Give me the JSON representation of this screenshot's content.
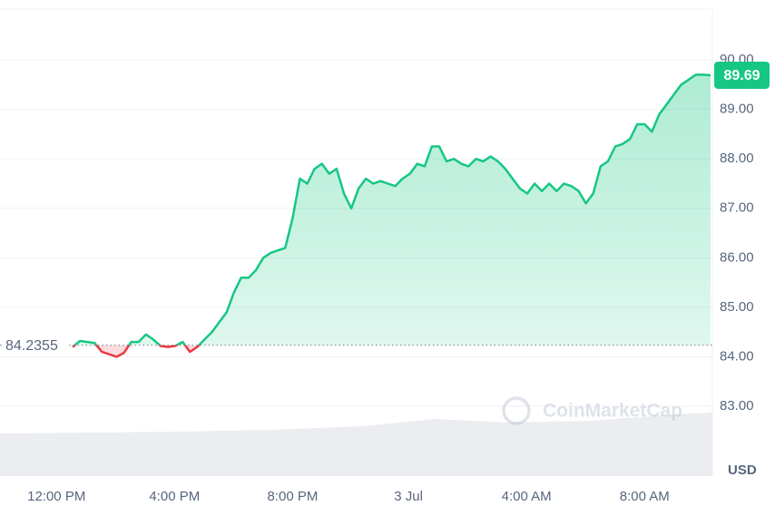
{
  "chart_data": {
    "type": "line",
    "values": [
      84.2,
      84.32,
      84.3,
      84.28,
      84.1,
      84.05,
      84.0,
      84.08,
      84.3,
      84.3,
      84.45,
      84.35,
      84.22,
      84.2,
      84.22,
      84.3,
      84.1,
      84.2,
      84.35,
      84.5,
      84.7,
      84.9,
      85.3,
      85.6,
      85.6,
      85.75,
      86.0,
      86.1,
      86.15,
      86.2,
      86.8,
      87.6,
      87.5,
      87.8,
      87.9,
      87.7,
      87.8,
      87.3,
      87.0,
      87.4,
      87.6,
      87.5,
      87.55,
      87.5,
      87.45,
      87.6,
      87.7,
      87.9,
      87.85,
      88.25,
      88.25,
      87.95,
      88.0,
      87.9,
      87.85,
      88.0,
      87.95,
      88.05,
      87.95,
      87.8,
      87.6,
      87.4,
      87.3,
      87.5,
      87.35,
      87.5,
      87.35,
      87.5,
      87.45,
      87.35,
      87.1,
      87.3,
      87.85,
      87.95,
      88.25,
      88.3,
      88.4,
      88.7,
      88.7,
      88.55,
      88.9,
      89.1,
      89.3,
      89.5,
      89.6,
      89.7,
      89.7,
      89.69
    ],
    "baseline": {
      "value": 84.2355,
      "label": "84.2355"
    },
    "current_price": {
      "value": 89.69,
      "label": "89.69"
    },
    "up_color": "#16c784",
    "down_color": "#ea3943",
    "xlim": [
      -9.9,
      87.0
    ],
    "xticks": [
      {
        "value": -2.2,
        "label": "12:00 PM"
      },
      {
        "value": 13.9,
        "label": "4:00 PM"
      },
      {
        "value": 30.0,
        "label": "8:00 PM"
      },
      {
        "value": 45.8,
        "label": "3 Jul"
      },
      {
        "value": 61.9,
        "label": "4:00 AM"
      },
      {
        "value": 78.0,
        "label": "8:00 AM"
      }
    ],
    "ylim": [
      81.59,
      91.21
    ],
    "yticks": [
      {
        "value": 83,
        "label": "83.00"
      },
      {
        "value": 84,
        "label": "84.00"
      },
      {
        "value": 85,
        "label": "85.00"
      },
      {
        "value": 86,
        "label": "86.00"
      },
      {
        "value": 87,
        "label": "87.00"
      },
      {
        "value": 88,
        "label": "88.00"
      },
      {
        "value": 89,
        "label": "89.00"
      },
      {
        "value": 90,
        "label": "90.00"
      }
    ],
    "currency": "USD",
    "watermark": "CoinMarketCap",
    "grid": true
  }
}
